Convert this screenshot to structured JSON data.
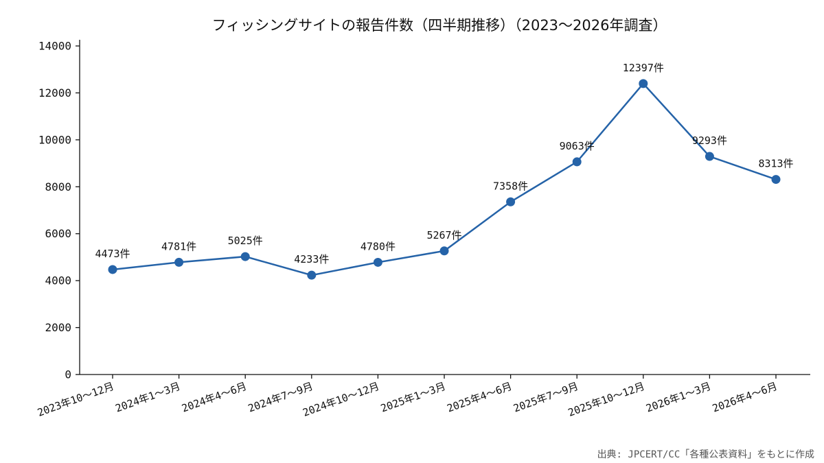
{
  "chart_data": {
    "type": "line",
    "title": "フィッシングサイトの報告件数（四半期推移）（2023〜2026年調査）",
    "xlabel": "",
    "ylabel": "",
    "categories": [
      "2023年10〜12月",
      "2024年1〜3月",
      "2024年4〜6月",
      "2024年7〜9月",
      "2024年10〜12月",
      "2025年1〜3月",
      "2025年4〜6月",
      "2025年7〜9月",
      "2025年10〜12月",
      "2026年1〜3月",
      "2026年4〜6月"
    ],
    "series": [
      {
        "values": [
          4473,
          4781,
          5025,
          4233,
          4780,
          5267,
          7358,
          9063,
          12397,
          9293,
          8313
        ],
        "labels": [
          "4473件",
          "4781件",
          "5025件",
          "4233件",
          "4780件",
          "5267件",
          "7358件",
          "9063件",
          "12397件",
          "9293件",
          "8313件"
        ],
        "color": "#2563a8"
      }
    ],
    "ylim": [
      0,
      14000
    ],
    "yticks": [
      "0",
      "2000",
      "4000",
      "6000",
      "8000",
      "10000",
      "12000",
      "14000"
    ],
    "grid": false,
    "legend": "none",
    "source": "出典: JPCERT/CC「各種公表資料」をもとに作成"
  }
}
